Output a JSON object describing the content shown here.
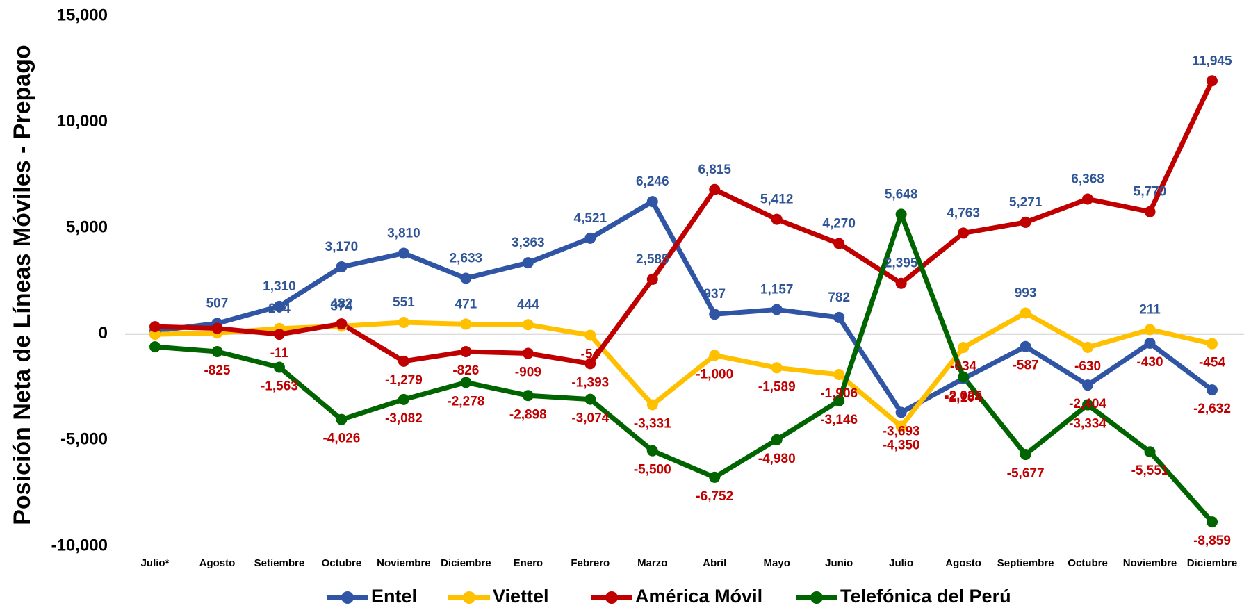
{
  "chart_data": {
    "type": "line",
    "y_label": "Posición Neta de Líneas Móviles - Prepago",
    "categories": [
      "Julio*",
      "Agosto",
      "Setiembre",
      "Octubre",
      "Noviembre",
      "Diciembre",
      "Enero",
      "Febrero",
      "Marzo",
      "Abril",
      "Mayo",
      "Junio",
      "Julio",
      "Agosto",
      "Septiembre",
      "Octubre",
      "Noviembre",
      "Diciembre"
    ],
    "series": [
      {
        "name": "Entel",
        "color": "#2f55a4",
        "values": [
          150,
          507,
          1310,
          3170,
          3810,
          2633,
          3363,
          4521,
          6246,
          937,
          1157,
          782,
          -3693,
          -2104,
          -587,
          -2404,
          -430,
          -2632
        ],
        "value_labels": [
          null,
          "507",
          "1,310",
          "3,170",
          "3,810",
          "2,633",
          "3,363",
          "4,521",
          "6,246",
          "937",
          "1,157",
          "782",
          "-3,693",
          "-2,104",
          "-587",
          "-2,404",
          "-430",
          "-2,632"
        ]
      },
      {
        "name": "Viettel",
        "color": "#ffc000",
        "values": [
          -10,
          50,
          264,
          374,
          551,
          471,
          444,
          -54,
          -3331,
          -1000,
          -1589,
          -1906,
          -4350,
          -634,
          993,
          -630,
          211,
          -454
        ],
        "value_labels": [
          null,
          null,
          "264",
          "374",
          "551",
          "471",
          "444",
          "-54",
          "-3,331",
          "-1,000",
          "-1,589",
          "-1,906",
          "-4,350",
          "-634",
          "993",
          "-630",
          "211",
          "-454"
        ]
      },
      {
        "name": "América Móvil",
        "color": "#c00000",
        "values": [
          350,
          270,
          -11,
          482,
          -1279,
          -826,
          -909,
          -1393,
          2585,
          6815,
          5412,
          4270,
          2395,
          4763,
          5271,
          6368,
          5770,
          11945
        ],
        "value_labels": [
          null,
          null,
          "-11",
          "482",
          "-1,279",
          "-826",
          "-909",
          "-1,393",
          "2,585",
          "6,815",
          "5,412",
          "4,270",
          "2,395",
          "4,763",
          "5,271",
          "6,368",
          "5,770",
          "11,945"
        ]
      },
      {
        "name": "Telefónica del Perú",
        "color": "#006400",
        "values": [
          -600,
          -825,
          -1563,
          -4026,
          -3082,
          -2278,
          -2898,
          -3074,
          -5500,
          -6752,
          -4980,
          -3146,
          5648,
          -2025,
          -5677,
          -3334,
          -5551,
          -8859
        ],
        "value_labels": [
          null,
          "-825",
          "-1,563",
          "-4,026",
          "-3,082",
          "-2,278",
          "-2,898",
          "-3,074",
          "-5,500",
          "-6,752",
          "-4,980",
          "-3,146",
          "5,648",
          "-2,025",
          "-5,677",
          "-3,334",
          "-5,551",
          "-8,859"
        ]
      }
    ],
    "ylim": [
      -10000,
      15000
    ],
    "yticks": [
      {
        "value": -10000,
        "label": "-10,000"
      },
      {
        "value": -5000,
        "label": "-5,000"
      },
      0,
      {
        "value": 5000,
        "label": "5,000"
      },
      {
        "value": 10000,
        "label": "10,000"
      },
      {
        "value": 15000,
        "label": "15,000"
      }
    ],
    "grid": false,
    "legend": "bottom"
  }
}
